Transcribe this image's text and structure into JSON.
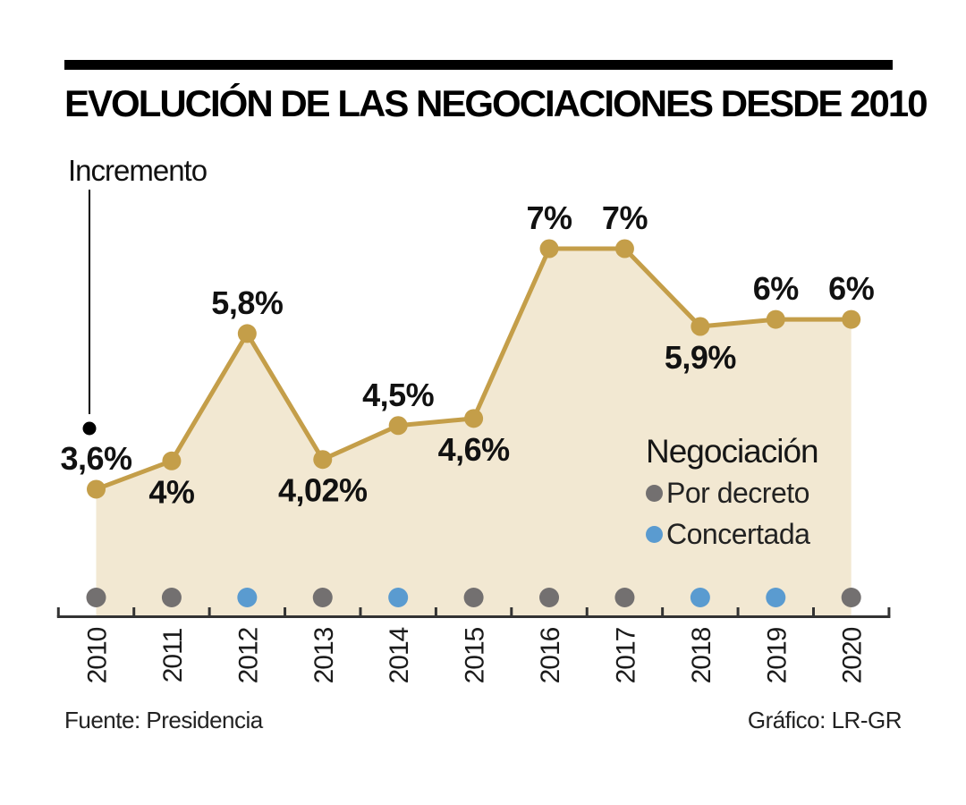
{
  "header": {
    "title": "EVOLUCIÓN DE LAS NEGOCIACIONES DESDE 2010"
  },
  "annotation": {
    "label": "Incremento"
  },
  "legend": {
    "title": "Negociación",
    "items": [
      {
        "label": "Por decreto",
        "color": "#737070"
      },
      {
        "label": "Concertada",
        "color": "#5A9BD0"
      }
    ]
  },
  "footer": {
    "source": "Fuente: Presidencia",
    "credit": "Gráfico: LR-GR"
  },
  "chart_data": {
    "type": "area",
    "title": "EVOLUCIÓN DE LAS NEGOCIACIONES DESDE 2010",
    "ylabel": "Incremento",
    "xlabel": "",
    "categories": [
      "2010",
      "2011",
      "2012",
      "2013",
      "2014",
      "2015",
      "2016",
      "2017",
      "2018",
      "2019",
      "2020"
    ],
    "values": [
      3.6,
      4,
      5.8,
      4.02,
      4.5,
      4.6,
      7,
      7,
      5.9,
      6,
      6
    ],
    "point_labels": [
      "3,6%",
      "4%",
      "5,8%",
      "4,02%",
      "4,5%",
      "4,6%",
      "7%",
      "7%",
      "5,9%",
      "6%",
      "6%"
    ],
    "label_positions": [
      "above",
      "below",
      "above",
      "below",
      "above",
      "below",
      "above",
      "above",
      "below",
      "above",
      "above"
    ],
    "negotiation_type": [
      "Por decreto",
      "Por decreto",
      "Concertada",
      "Por decreto",
      "Concertada",
      "Por decreto",
      "Por decreto",
      "Por decreto",
      "Concertada",
      "Concertada",
      "Por decreto"
    ],
    "ylim": [
      3.5,
      7.2
    ],
    "grid": false,
    "legend_position": "inside-right",
    "colors": {
      "line": "#C49E49",
      "area": "#F2E8D2",
      "point": "#C49E49",
      "axis": "#333333",
      "annotation": "#000000",
      "decreto_dot": "#737070",
      "concertada_dot": "#5A9BD0"
    }
  }
}
